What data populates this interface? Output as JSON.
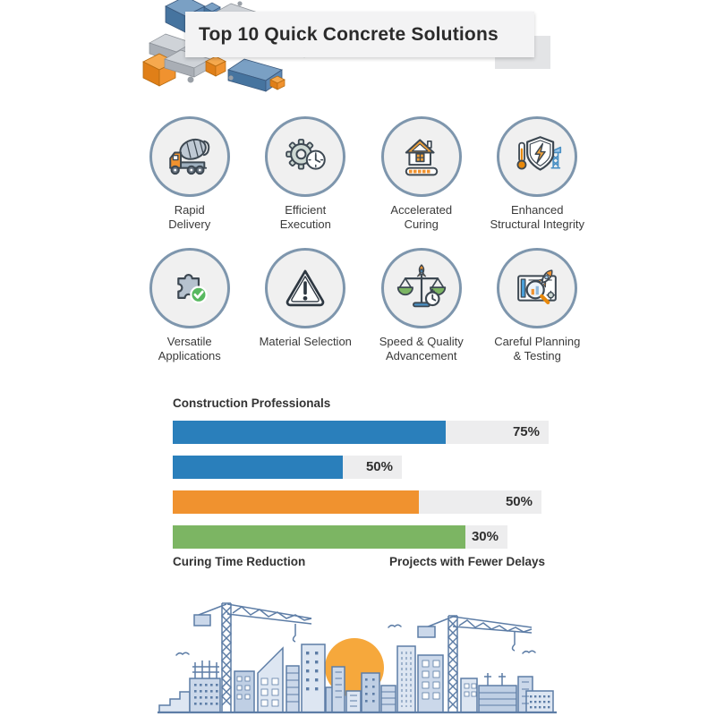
{
  "title": "Top 10 Quick Concrete Solutions",
  "features": [
    {
      "icon": "mixer-truck",
      "label": "Rapid\nDelivery"
    },
    {
      "icon": "gear-clock",
      "label": "Efficient\nExecution"
    },
    {
      "icon": "house-curing",
      "label": "Accelerated\nCuring"
    },
    {
      "icon": "shield-integrity",
      "label": "Enhanced\nStructural Integrity"
    },
    {
      "icon": "puzzle-check",
      "label": "Versatile\nApplications"
    },
    {
      "icon": "warning-triangle",
      "label": "Material Selection"
    },
    {
      "icon": "scale-rocket",
      "label": "Speed & Quality\nAdvancement"
    },
    {
      "icon": "planning-magnifier",
      "label": "Careful Planning\n& Testing"
    }
  ],
  "chart_data": {
    "type": "bar",
    "orientation": "horizontal",
    "title": "Construction Professionals",
    "track_color": "#ededee",
    "bars": [
      {
        "value": 75,
        "value_label": "75%",
        "color": "#2a7fbb",
        "track_w": 420,
        "fill_w": 305
      },
      {
        "value": 50,
        "value_label": "50%",
        "color": "#2a7fbb",
        "track_w": 256,
        "fill_w": 190
      },
      {
        "value": 50,
        "value_label": "50%",
        "color": "#f0922f",
        "track_w": 412,
        "fill_w": 275
      },
      {
        "value": 30,
        "value_label": "30%",
        "color": "#7cb563",
        "track_w": 374,
        "fill_w": 327
      }
    ],
    "footer_labels": [
      "Curing Time Reduction",
      "Projects with Fewer Delays"
    ],
    "legend": "none",
    "grid": false
  },
  "colors": {
    "accent_blue": "#2a7fbb",
    "accent_orange": "#f0922f",
    "accent_green": "#7cb563",
    "circle_border": "#7e96ad",
    "circle_fill": "#f0f0f0",
    "banner_bg": "#f3f3f4",
    "banner_fold": "#e3e4e6",
    "skyline_line": "#5d7da6",
    "sun": "#f6a83c"
  }
}
